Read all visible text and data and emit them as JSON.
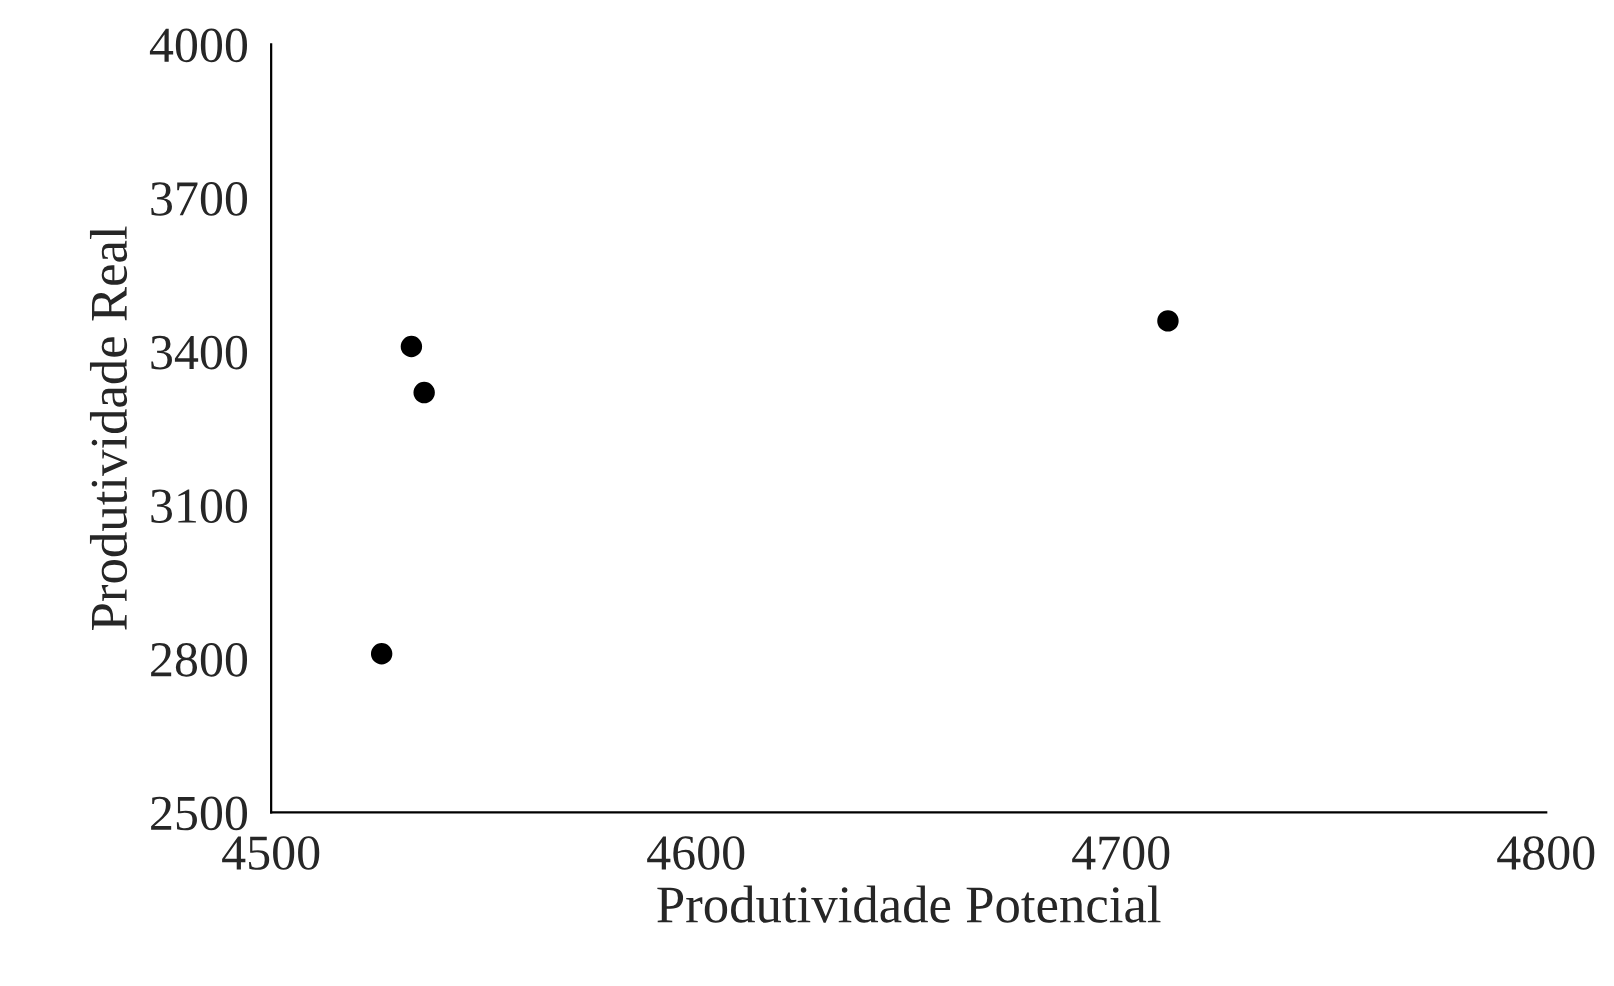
{
  "chart_data": {
    "type": "scatter",
    "xlabel": "Produtividade Potencial",
    "ylabel": "Produtividade Real",
    "series": [
      {
        "color": "#000000",
        "x": [
          4533,
          4536,
          4711,
          4526
        ],
        "values": [
          3410,
          3320,
          3460,
          2810
        ]
      }
    ],
    "xlim": [
      4500,
      4800
    ],
    "xticks": [
      4500,
      4600,
      4700,
      4800
    ],
    "ylim": [
      2500,
      4000
    ],
    "yticks": [
      2500,
      2800,
      3100,
      3400,
      3700,
      4000
    ],
    "marker": "circle"
  }
}
